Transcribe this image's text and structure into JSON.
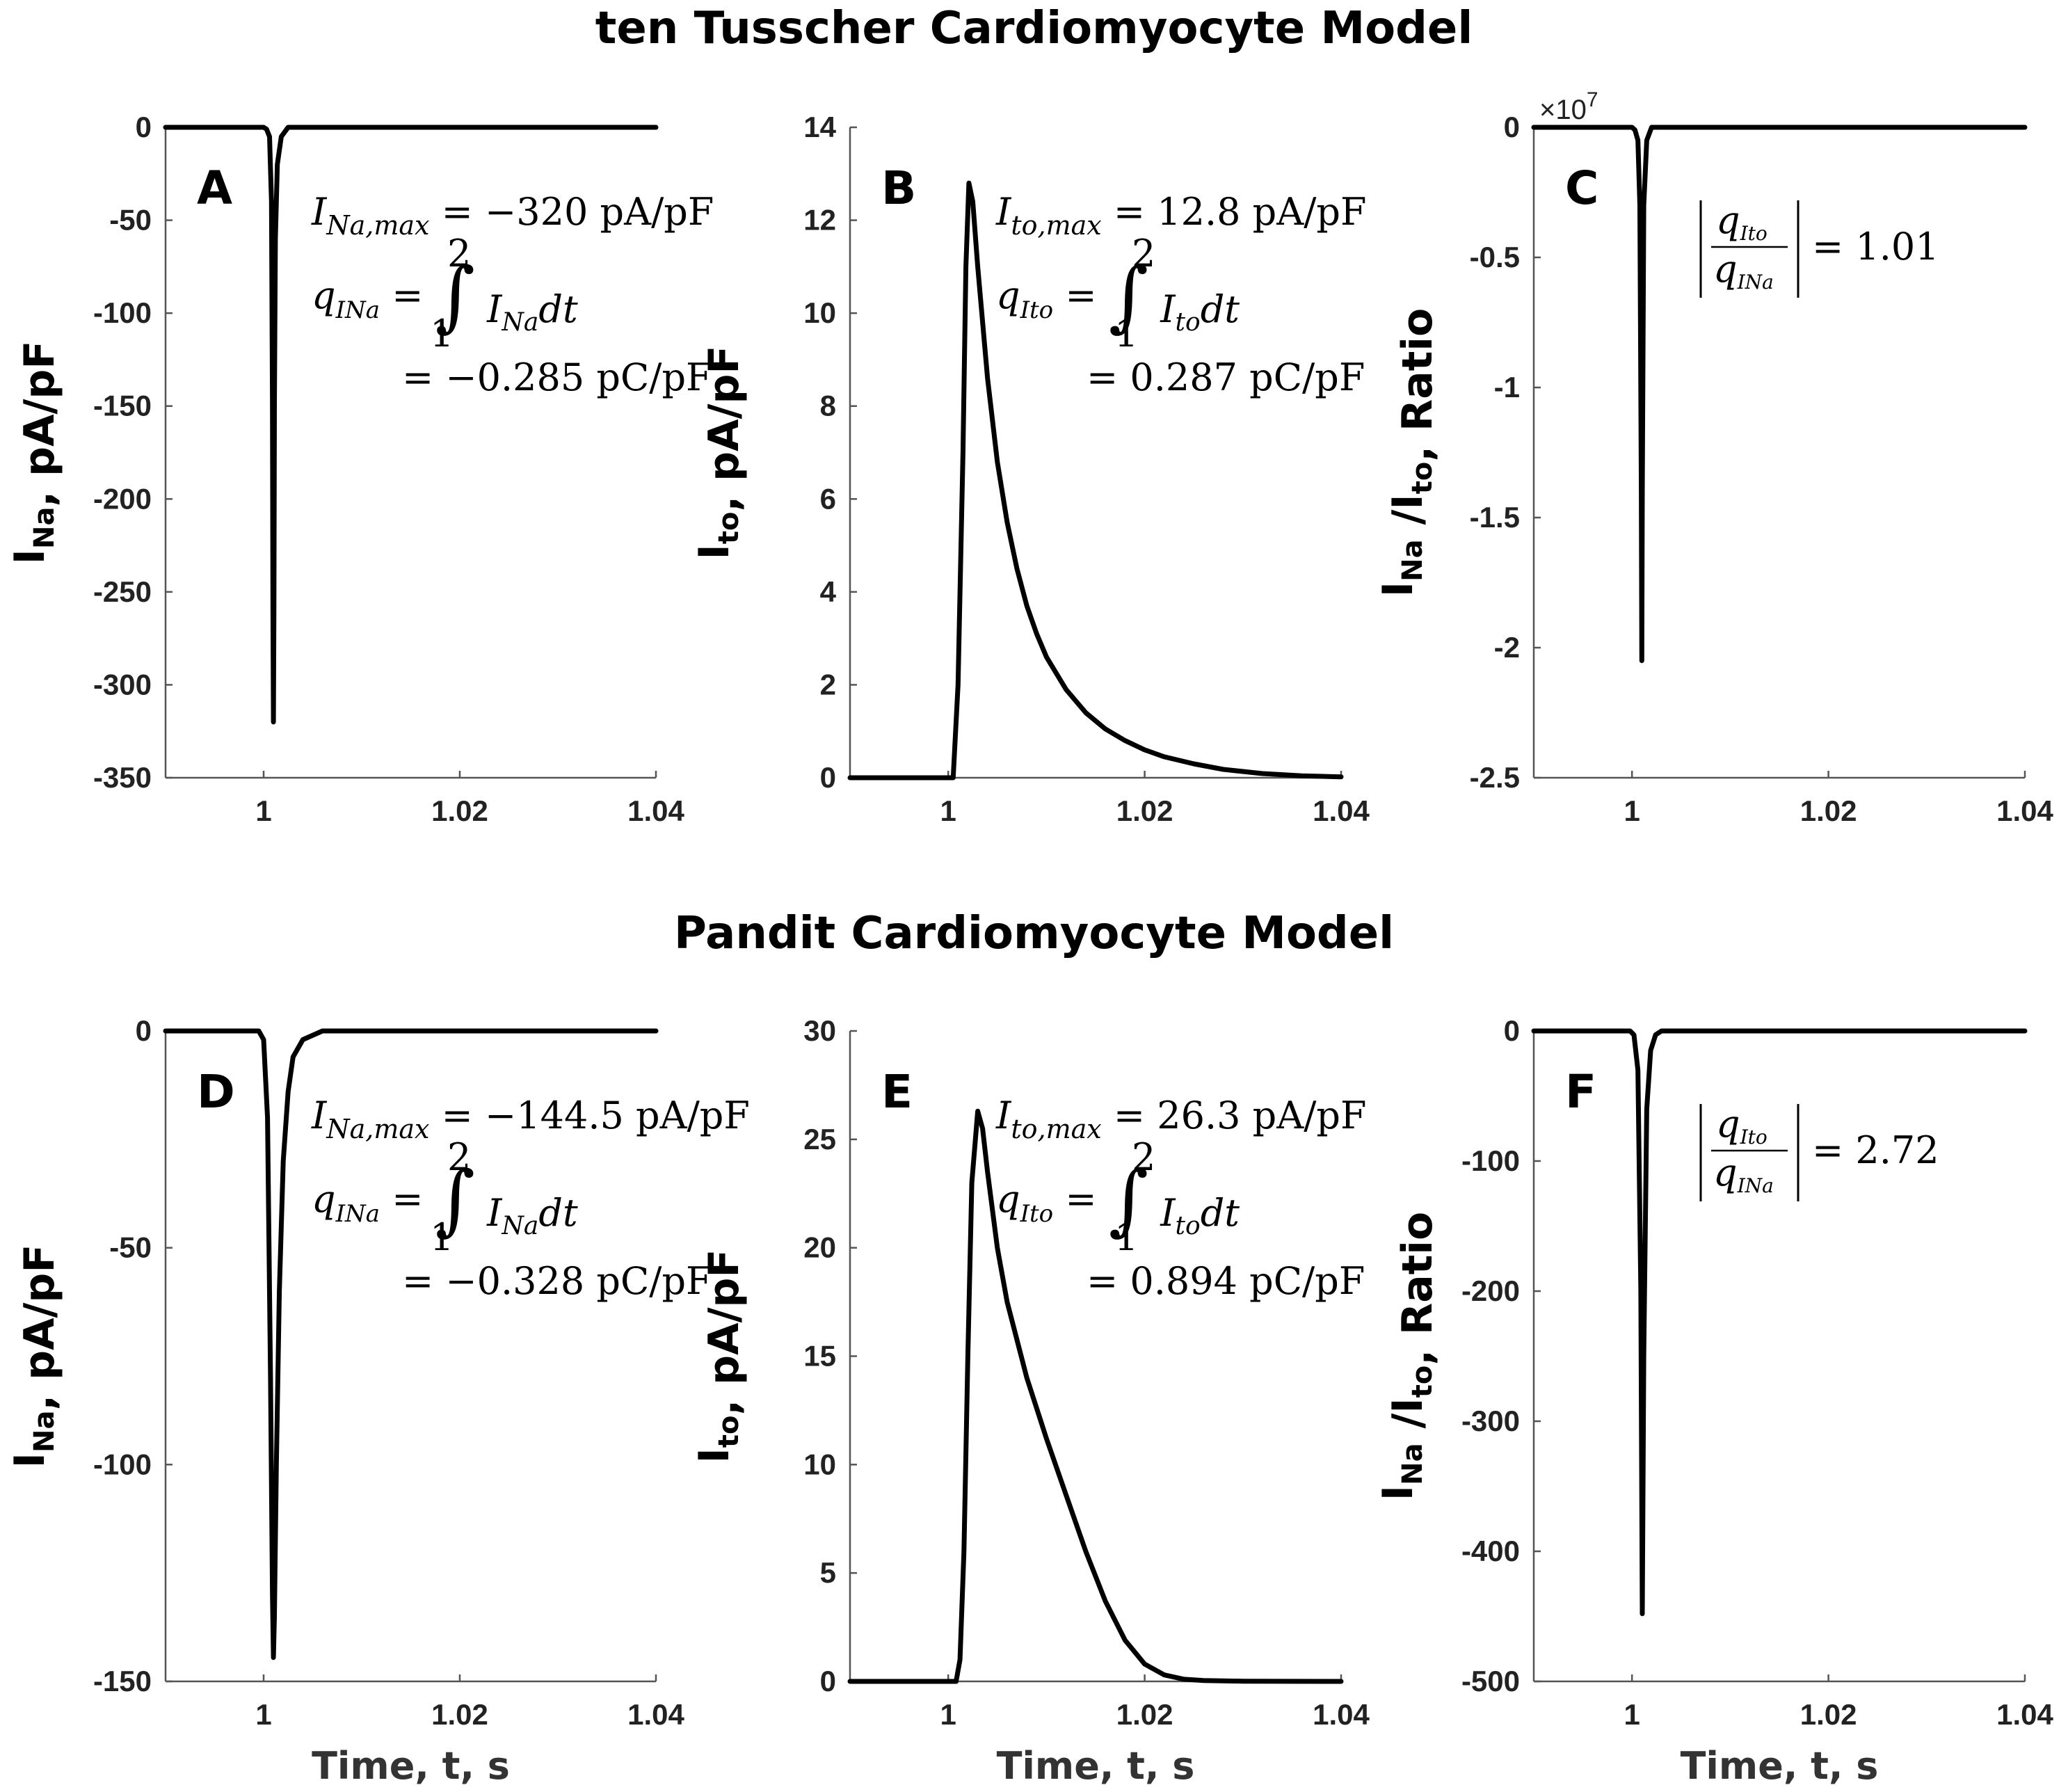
{
  "titles": {
    "top": "ten Tusscher Cardiomyocyte Model",
    "bottom": "Pandit Cardiomyocyte Model"
  },
  "chart_data": [
    {
      "id": "A",
      "type": "line",
      "letter": "A",
      "ylabel": "I_Na, pA/pF",
      "xlabel": "",
      "xlim": [
        0.99,
        1.04
      ],
      "ylim": [
        -350,
        0
      ],
      "xticks": [
        "1",
        "1.02",
        "1.04"
      ],
      "yticks": [
        "0",
        "-50",
        "-100",
        "-150",
        "-200",
        "-250",
        "-300",
        "-350"
      ],
      "ytick_values": [
        0,
        -50,
        -100,
        -150,
        -200,
        -250,
        -300,
        -350
      ],
      "x": [
        0.99,
        1.0,
        1.0003,
        1.0006,
        1.0008,
        1.0009,
        1.00095,
        1.001,
        1.00105,
        1.0011,
        1.0012,
        1.0014,
        1.0018,
        1.0025,
        1.04
      ],
      "y": [
        0,
        0,
        -1,
        -5,
        -40,
        -150,
        -260,
        -320,
        -260,
        -150,
        -60,
        -20,
        -5,
        0,
        0
      ],
      "annotation": {
        "line1": "I_Na,max = −320 pA/pF",
        "line2": "q_INa = ∫₁² I_Na dt",
        "line3": "= −0.285 pC/pF"
      }
    },
    {
      "id": "B",
      "type": "line",
      "letter": "B",
      "ylabel": "I_to, pA/pF",
      "xlabel": "",
      "xlim": [
        0.99,
        1.04
      ],
      "ylim": [
        0,
        14
      ],
      "xticks": [
        "1",
        "1.02",
        "1.04"
      ],
      "yticks": [
        "0",
        "2",
        "4",
        "6",
        "8",
        "10",
        "12",
        "14"
      ],
      "ytick_values": [
        0,
        2,
        4,
        6,
        8,
        10,
        12,
        14
      ],
      "x": [
        0.99,
        1.0005,
        1.001,
        1.0015,
        1.0018,
        1.0021,
        1.0025,
        1.003,
        1.004,
        1.005,
        1.006,
        1.007,
        1.008,
        1.009,
        1.01,
        1.012,
        1.014,
        1.016,
        1.018,
        1.02,
        1.022,
        1.025,
        1.028,
        1.032,
        1.036,
        1.04
      ],
      "y": [
        0,
        0,
        2,
        7,
        11,
        12.8,
        12.4,
        11.0,
        8.6,
        6.8,
        5.5,
        4.5,
        3.7,
        3.1,
        2.6,
        1.9,
        1.4,
        1.05,
        0.8,
        0.6,
        0.45,
        0.3,
        0.18,
        0.09,
        0.04,
        0.02
      ],
      "annotation": {
        "line1": "I_to,max = 12.8 pA/pF",
        "line2": "q_Ito = ∫₁² I_to dt",
        "line3": "= 0.287 pC/pF"
      }
    },
    {
      "id": "C",
      "type": "line",
      "letter": "C",
      "ylabel": "I_Na /I_to, Ratio",
      "xlabel": "",
      "xlim": [
        0.99,
        1.04
      ],
      "ylim": [
        -2.5,
        0
      ],
      "exponent_label": "×10",
      "exponent_power": "7",
      "xticks": [
        "1",
        "1.02",
        "1.04"
      ],
      "yticks": [
        "0",
        "-0.5",
        "-1",
        "-1.5",
        "-2",
        "-2.5"
      ],
      "ytick_values": [
        0,
        -0.5,
        -1,
        -1.5,
        -2,
        -2.5
      ],
      "x": [
        0.99,
        1.0,
        1.0003,
        1.0006,
        1.0008,
        1.00095,
        1.001,
        1.00105,
        1.0012,
        1.0015,
        1.002,
        1.04
      ],
      "y": [
        0,
        0,
        -0.01,
        -0.05,
        -0.3,
        -1.4,
        -2.05,
        -1.4,
        -0.3,
        -0.05,
        0,
        0
      ],
      "annotation": {
        "ratio": "|q_Ito / q_INa| = 1.01"
      }
    },
    {
      "id": "D",
      "type": "line",
      "letter": "D",
      "ylabel": "I_Na, pA/pF",
      "xlabel": "Time, t, s",
      "xlim": [
        0.99,
        1.04
      ],
      "ylim": [
        -150,
        0
      ],
      "xticks": [
        "1",
        "1.02",
        "1.04"
      ],
      "yticks": [
        "0",
        "-50",
        "-100",
        "-150"
      ],
      "ytick_values": [
        0,
        -50,
        -100,
        -150
      ],
      "x": [
        0.99,
        0.9995,
        1.0,
        1.0004,
        1.0007,
        1.0009,
        1.001,
        1.0011,
        1.0013,
        1.0016,
        1.002,
        1.0025,
        1.003,
        1.004,
        1.006,
        1.04
      ],
      "y": [
        0,
        0,
        -2,
        -20,
        -80,
        -130,
        -144.5,
        -135,
        -100,
        -60,
        -30,
        -14,
        -6,
        -2,
        0,
        0
      ],
      "annotation": {
        "line1": "I_Na,max = −144.5 pA/pF",
        "line2": "q_INa = ∫₁² I_Na dt",
        "line3": "= −0.328 pC/pF"
      }
    },
    {
      "id": "E",
      "type": "line",
      "letter": "E",
      "ylabel": "I_to, pA/pF",
      "xlabel": "Time, t, s",
      "xlim": [
        0.99,
        1.04
      ],
      "ylim": [
        0,
        30
      ],
      "xticks": [
        "1",
        "1.02",
        "1.04"
      ],
      "yticks": [
        "0",
        "5",
        "10",
        "15",
        "20",
        "25",
        "30"
      ],
      "ytick_values": [
        0,
        5,
        10,
        15,
        20,
        25,
        30
      ],
      "x": [
        0.99,
        1.0008,
        1.0012,
        1.0016,
        1.002,
        1.0024,
        1.003,
        1.0035,
        1.004,
        1.005,
        1.006,
        1.008,
        1.01,
        1.012,
        1.014,
        1.016,
        1.018,
        1.02,
        1.022,
        1.024,
        1.026,
        1.03,
        1.04
      ],
      "y": [
        0,
        0,
        1,
        6,
        15,
        23,
        26.3,
        25.5,
        23.5,
        20,
        17.5,
        14,
        11.2,
        8.6,
        6.0,
        3.7,
        1.9,
        0.8,
        0.3,
        0.1,
        0.04,
        0.01,
        0
      ],
      "annotation": {
        "line1": "I_to,max = 26.3 pA/pF",
        "line2": "q_Ito = ∫₁² I_to dt",
        "line3": "= 0.894 pC/pF"
      }
    },
    {
      "id": "F",
      "type": "line",
      "letter": "F",
      "ylabel": "I_Na /I_to, Ratio",
      "xlabel": "Time, t, s",
      "xlim": [
        0.99,
        1.04
      ],
      "ylim": [
        -500,
        0
      ],
      "xticks": [
        "1",
        "1.02",
        "1.04"
      ],
      "yticks": [
        "0",
        "-100",
        "-200",
        "-300",
        "-400",
        "-500"
      ],
      "ytick_values": [
        0,
        -100,
        -200,
        -300,
        -400,
        -500
      ],
      "x": [
        0.99,
        0.9998,
        1.0002,
        1.0006,
        1.0009,
        1.00105,
        1.0012,
        1.0015,
        1.0019,
        1.0024,
        1.003,
        1.04
      ],
      "y": [
        0,
        0,
        -3,
        -30,
        -200,
        -448,
        -250,
        -60,
        -15,
        -3,
        0,
        0
      ],
      "annotation": {
        "ratio": "|q_Ito / q_INa| = 2.72"
      }
    }
  ]
}
